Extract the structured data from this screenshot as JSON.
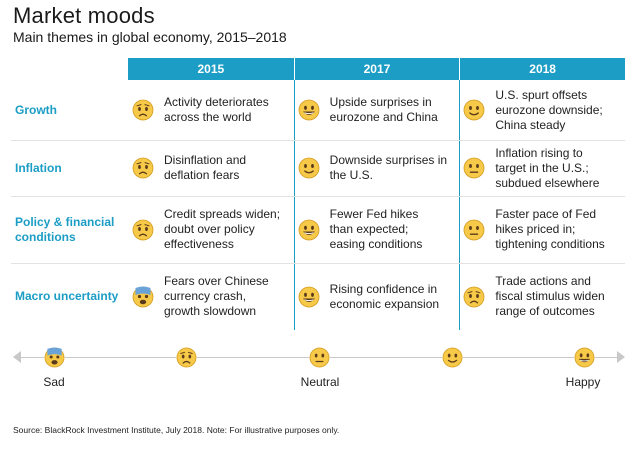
{
  "title": "Market moods",
  "subtitle": "Main themes in global economy, 2015–2018",
  "columns": [
    "2015",
    "2017",
    "2018"
  ],
  "rows": [
    {
      "label": "Growth",
      "cells": [
        {
          "mood": "worried",
          "text": "Activity deteriorates\nacross the world"
        },
        {
          "mood": "grin",
          "text": "Upside surprises in\neurozone and China"
        },
        {
          "mood": "slight-smile",
          "text": "U.S. spurt offsets\neurozone downside;\nChina steady"
        }
      ]
    },
    {
      "label": "Inflation",
      "cells": [
        {
          "mood": "worried",
          "text": "Disinflation and\ndeflation fears"
        },
        {
          "mood": "slight-smile",
          "text": "Downside surprises in\nthe U.S."
        },
        {
          "mood": "neutral",
          "text": "Inflation rising to\ntarget in the U.S.;\nsubdued elsewhere"
        }
      ]
    },
    {
      "label": "Policy & financial\nconditions",
      "cells": [
        {
          "mood": "worried",
          "text": "Credit spreads widen;\ndoubt over policy\neffectiveness"
        },
        {
          "mood": "grin",
          "text": "Fewer Fed hikes\nthan expected;\neasing conditions"
        },
        {
          "mood": "neutral",
          "text": "Faster pace of Fed\nhikes priced in;\ntightening conditions"
        }
      ]
    },
    {
      "label": "Macro uncertainty",
      "cells": [
        {
          "mood": "fearful",
          "text": "Fears over Chinese\ncurrency crash,\ngrowth slowdown"
        },
        {
          "mood": "grin",
          "text": "Rising confidence in\neconomic expansion"
        },
        {
          "mood": "worried",
          "text": "Trade actions and\nfiscal stimulus widen\nrange of outcomes"
        }
      ]
    }
  ],
  "scale": {
    "moods": [
      "fearful",
      "worried",
      "neutral",
      "slight-smile",
      "grin"
    ],
    "labels": {
      "left": "Sad",
      "center": "Neutral",
      "right": "Happy"
    }
  },
  "source": "Source: BlackRock Investment Institute, July 2018. Note: For illustrative purposes only.",
  "colors": {
    "accent": "#1b9dc5",
    "emoji_face": "#f7c948",
    "emoji_outline": "#d39a1d"
  }
}
